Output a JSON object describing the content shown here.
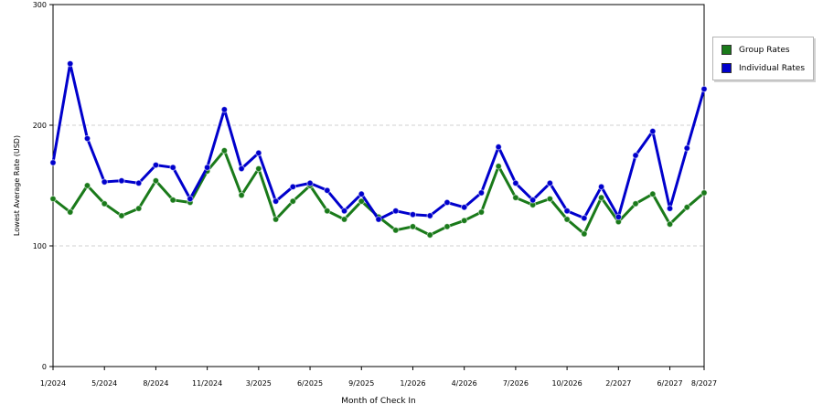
{
  "chart_data": {
    "type": "line",
    "title": "",
    "xlabel": "Month of Check In",
    "ylabel": "Lowest Average Rate (USD)",
    "ylim": [
      0,
      300
    ],
    "yticks": [
      0,
      100,
      200,
      300
    ],
    "x_tick_labels": [
      {
        "label": "1/2024",
        "index": 0
      },
      {
        "label": "5/2024",
        "index": 3
      },
      {
        "label": "8/2024",
        "index": 6
      },
      {
        "label": "11/2024",
        "index": 9
      },
      {
        "label": "3/2025",
        "index": 12
      },
      {
        "label": "6/2025",
        "index": 15
      },
      {
        "label": "9/2025",
        "index": 18
      },
      {
        "label": "1/2026",
        "index": 21
      },
      {
        "label": "4/2026",
        "index": 24
      },
      {
        "label": "7/2026",
        "index": 27
      },
      {
        "label": "10/2026",
        "index": 30
      },
      {
        "label": "2/2027",
        "index": 33
      },
      {
        "label": "6/2027",
        "index": 36
      },
      {
        "label": "8/2027",
        "index": 38
      }
    ],
    "grid": "horizontal dashed",
    "legend_position": "right",
    "series": [
      {
        "name": "Group Rates",
        "color": "#1a7a1a",
        "values": [
          139,
          128,
          150,
          135,
          125,
          131,
          154,
          138,
          136,
          162,
          179,
          142,
          164,
          122,
          137,
          150,
          129,
          122,
          137,
          124,
          113,
          116,
          109,
          116,
          121,
          128,
          166,
          140,
          134,
          139,
          122,
          110,
          140,
          120,
          135,
          143,
          118,
          132,
          144
        ]
      },
      {
        "name": "Individual Rates",
        "color": "#0000cc",
        "values": [
          169,
          251,
          189,
          153,
          154,
          152,
          167,
          165,
          139,
          165,
          213,
          164,
          177,
          137,
          149,
          152,
          146,
          129,
          143,
          122,
          129,
          126,
          125,
          136,
          132,
          144,
          182,
          152,
          138,
          152,
          129,
          123,
          149,
          124,
          175,
          195,
          131,
          181,
          230
        ]
      }
    ]
  }
}
